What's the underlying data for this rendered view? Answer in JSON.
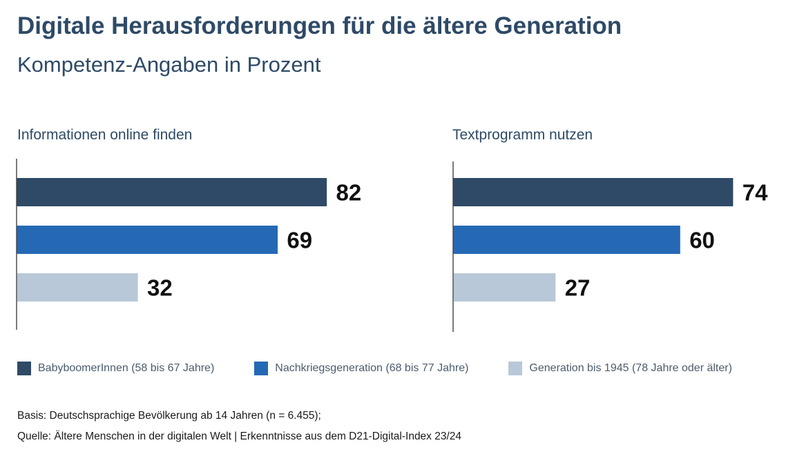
{
  "title": "Digitale Herausforderungen für die ältere Generation",
  "subtitle": "Kompetenz-Angaben in Prozent",
  "colors": {
    "babyboomer": "#2e4a66",
    "nachkrieg": "#2569b5",
    "gen1945": "#b8c8d8"
  },
  "legend": [
    {
      "label": "BabyboomerInnen (58 bis 67 Jahre)",
      "color": "#2e4a66"
    },
    {
      "label": "Nachkriegsgeneration (68 bis 77 Jahre)",
      "color": "#2569b5"
    },
    {
      "label": "Generation bis 1945 (78 Jahre oder älter)",
      "color": "#b8c8d8"
    }
  ],
  "chart_data": [
    {
      "type": "bar",
      "orientation": "horizontal",
      "title": "Informationen online finden",
      "categories": [
        "BabyboomerInnen (58 bis 67 Jahre)",
        "Nachkriegsgeneration (68 bis 77 Jahre)",
        "Generation bis 1945 (78 Jahre oder älter)"
      ],
      "values": [
        82,
        69,
        32
      ],
      "colors": [
        "#2e4a66",
        "#2569b5",
        "#b8c8d8"
      ],
      "xlim": [
        0,
        100
      ],
      "grid": false
    },
    {
      "type": "bar",
      "orientation": "horizontal",
      "title": "Textprogramm nutzen",
      "categories": [
        "BabyboomerInnen (58 bis 67 Jahre)",
        "Nachkriegsgeneration (68 bis 77 Jahre)",
        "Generation bis 1945 (78 Jahre oder älter)"
      ],
      "values": [
        74,
        60,
        27
      ],
      "colors": [
        "#2e4a66",
        "#2569b5",
        "#b8c8d8"
      ],
      "xlim": [
        0,
        100
      ],
      "grid": false
    }
  ],
  "footnotes": {
    "basis": "Basis: Deutschsprachige Bevölkerung ab 14 Jahren (n = 6.455);",
    "quelle": "Quelle: Ältere Menschen in der digitalen Welt | Erkenntnisse aus dem D21-Digital-Index 23/24"
  }
}
